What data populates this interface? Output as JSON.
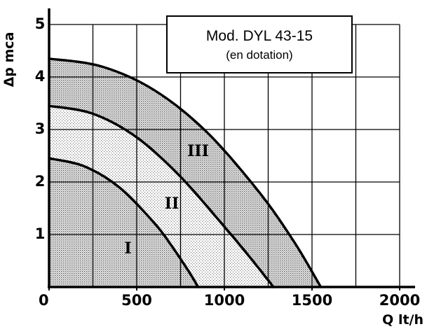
{
  "chart_data": {
    "type": "line",
    "xlabel": "Q lt/h",
    "ylabel": "Δp mca",
    "xlim": [
      0,
      2000
    ],
    "ylim": [
      0,
      5
    ],
    "xticks": [
      "0",
      "500",
      "1000",
      "1500",
      "2000"
    ],
    "yticks": [
      "1",
      "2",
      "3",
      "4",
      "5"
    ],
    "grid": true,
    "legend_box": {
      "title": "Mod. DYL 43-15",
      "subtitle": "(en dotation)"
    },
    "series": [
      {
        "name": "I",
        "x": [
          0,
          200,
          400,
          600,
          700,
          800,
          850
        ],
        "y": [
          2.45,
          2.3,
          1.9,
          1.22,
          0.78,
          0.28,
          0
        ]
      },
      {
        "name": "II",
        "x": [
          0,
          250,
          500,
          750,
          1000,
          1150,
          1280
        ],
        "y": [
          3.45,
          3.3,
          2.85,
          2.1,
          1.15,
          0.55,
          0
        ]
      },
      {
        "name": "III",
        "x": [
          0,
          300,
          600,
          900,
          1200,
          1400,
          1550
        ],
        "y": [
          4.35,
          4.2,
          3.75,
          2.95,
          1.8,
          0.85,
          0
        ]
      }
    ],
    "fill": {
      "area_under_I": "dense dotted",
      "band_I_II": "light dotted",
      "band_II_III": "medium dotted"
    }
  }
}
